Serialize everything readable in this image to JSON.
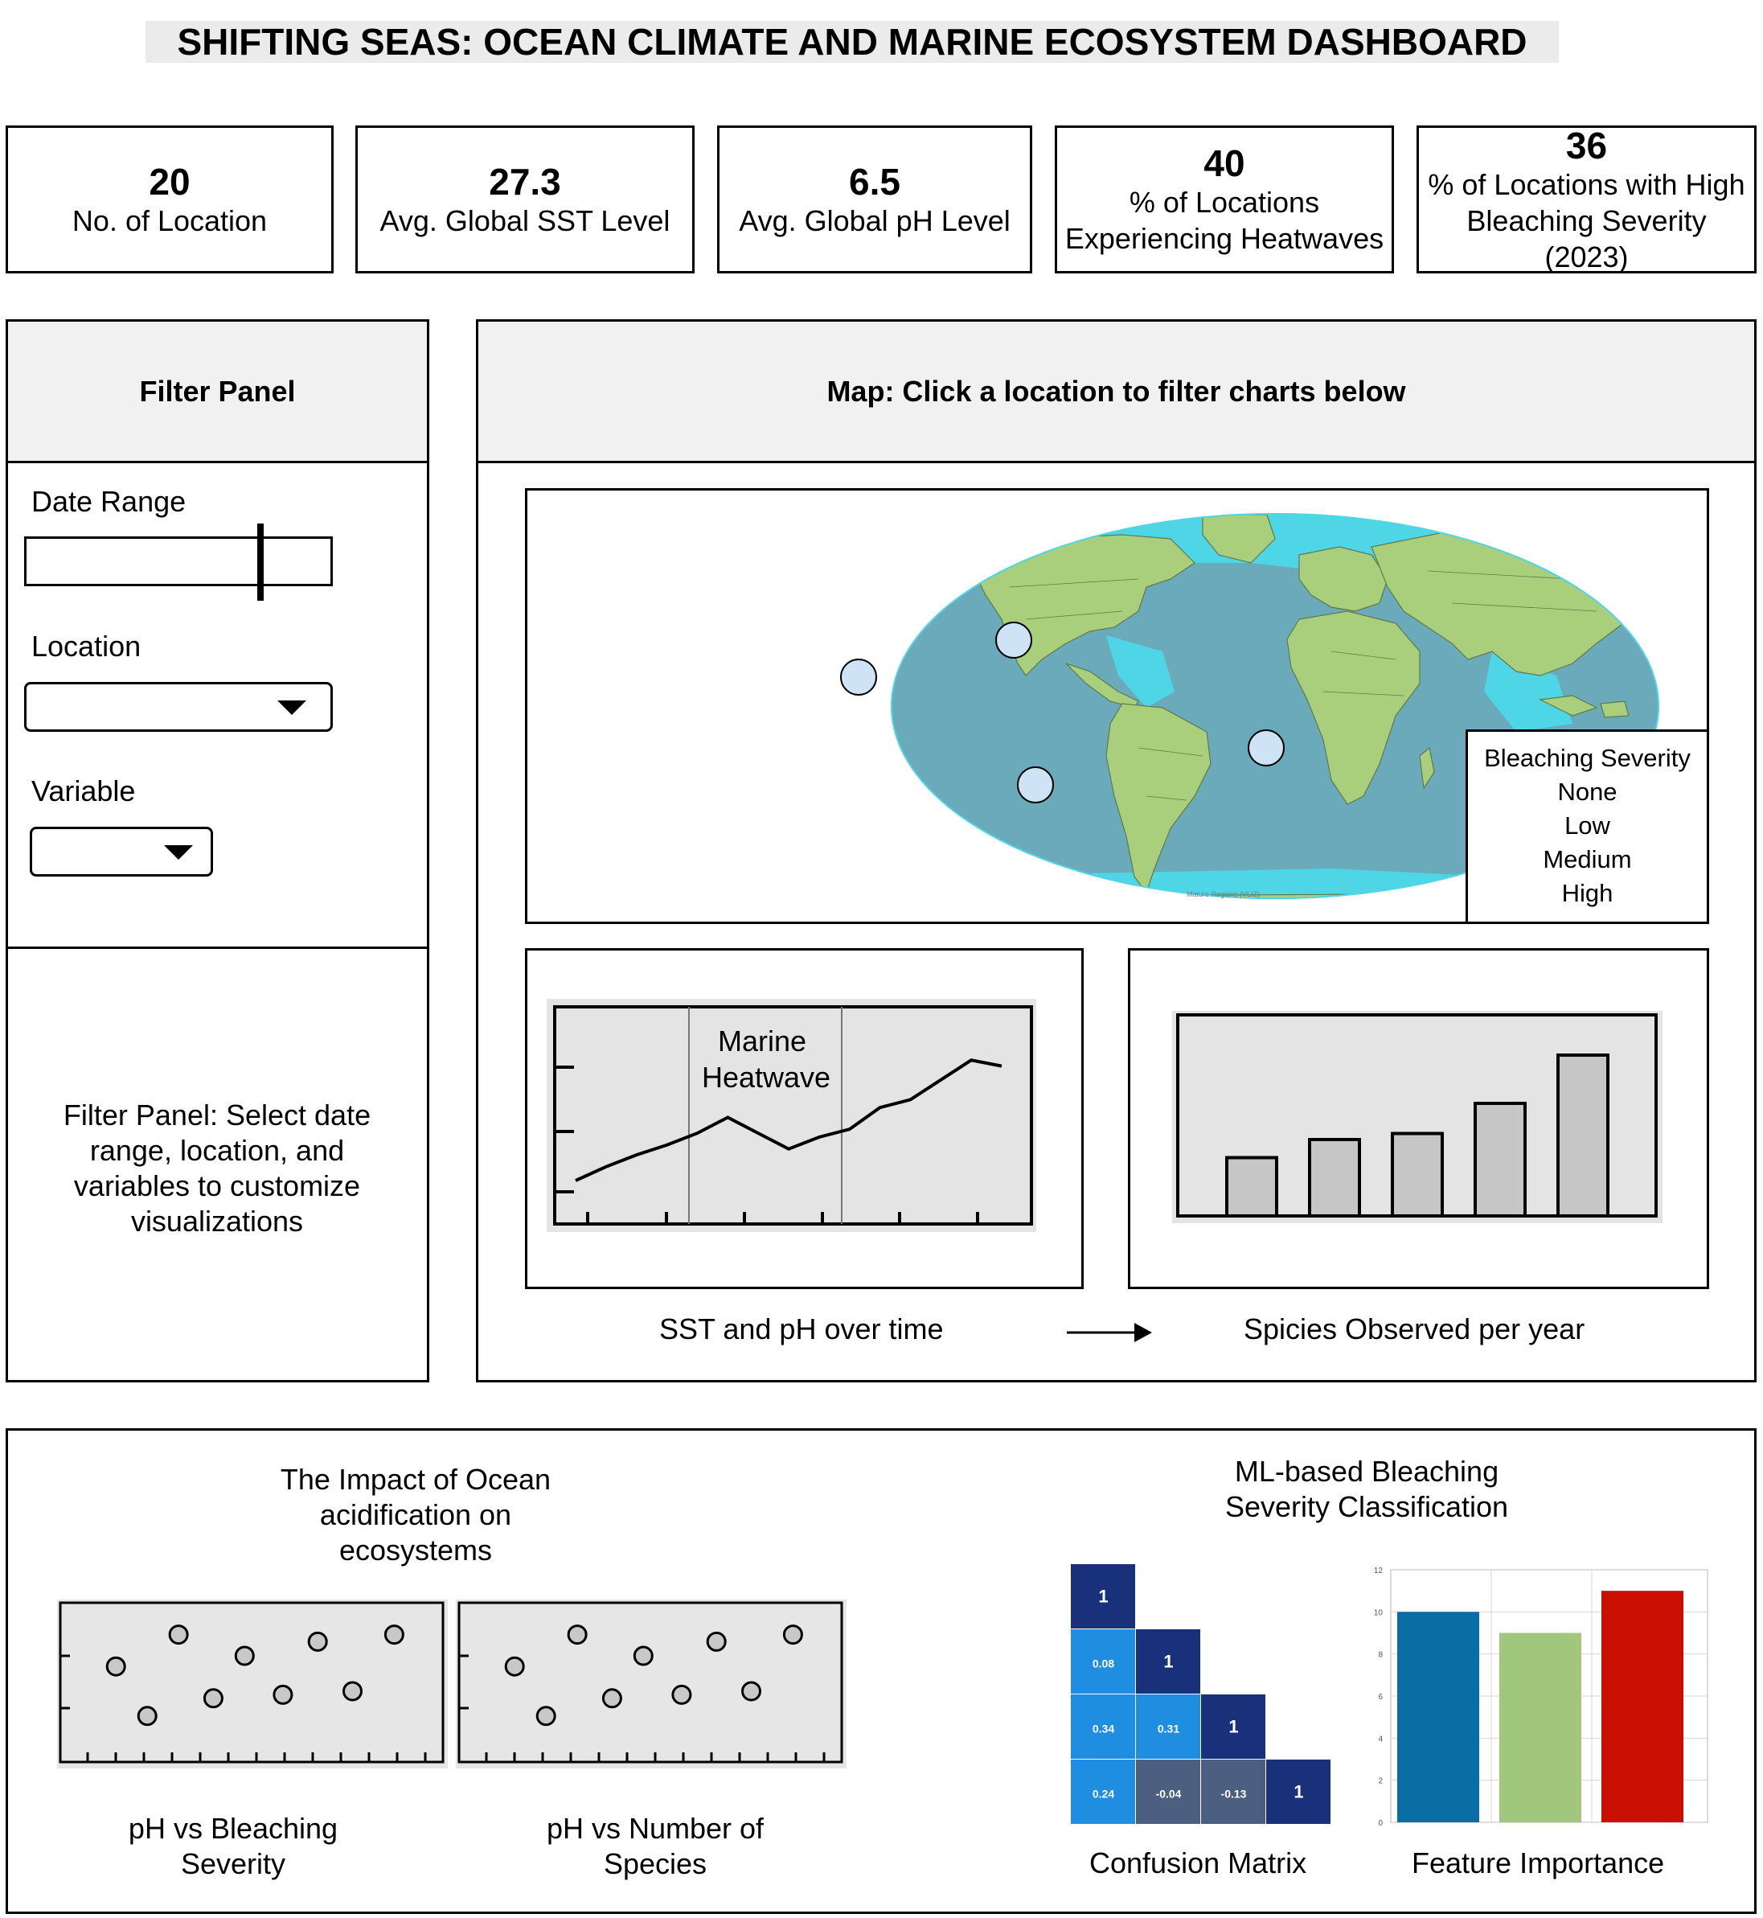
{
  "header": {
    "title": "SHIFTING SEAS: OCEAN CLIMATE AND MARINE ECOSYSTEM DASHBOARD"
  },
  "kpis": [
    {
      "value": "20",
      "label": "No. of Location"
    },
    {
      "value": "27.3",
      "label": "Avg. Global SST Level"
    },
    {
      "value": "6.5",
      "label": "Avg. Global pH Level"
    },
    {
      "value": "40",
      "label": "% of Locations Experiencing Heatwaves"
    },
    {
      "value": "36",
      "label": "% of Locations with High Bleaching Severity (2023)"
    }
  ],
  "filter_panel": {
    "title": "Filter Panel",
    "date_range_label": "Date Range",
    "date_range_position": 0.77,
    "location_label": "Location",
    "variable_label": "Variable",
    "description": "Filter Panel: Select date range, location, and variables to customize visualizations"
  },
  "map_panel": {
    "title": "Map: Click a location to filter charts below",
    "map_credit": "Mature Regions (VLIZ)",
    "legend": {
      "title": "Bleaching Severity",
      "items": [
        "None",
        "Low",
        "Medium",
        "High"
      ]
    },
    "colors": {
      "ocean": "#6aaabb",
      "land": "#a9cf7d",
      "coast": "#4fd6e6",
      "marker": "#cfe3f6"
    }
  },
  "line_chart": {
    "annotation_line1": "Marine",
    "annotation_line2": "Heatwave",
    "caption": "SST and pH over time"
  },
  "bar_chart": {
    "caption": "Spicies Observed per year"
  },
  "impact_section": {
    "title": "The Impact of Ocean acidification on ecosystems",
    "scatter1_caption": "pH vs Bleaching Severity",
    "scatter2_caption": "pH vs Number of Species"
  },
  "ml_section": {
    "title": "ML-based Bleaching Severity Classification",
    "confusion_caption": "Confusion Matrix",
    "feature_caption": "Feature Importance"
  },
  "chart_data": [
    {
      "type": "line",
      "x": [
        1,
        2,
        3,
        4,
        5,
        6,
        7,
        8,
        9,
        10,
        11,
        12,
        13,
        14,
        15
      ],
      "values": [
        2.2,
        2.9,
        3.5,
        4.0,
        4.6,
        5.4,
        4.6,
        3.8,
        4.4,
        4.8,
        5.9,
        6.3,
        7.3,
        8.3,
        8.0
      ],
      "title": "",
      "xlabel": "",
      "ylabel": "",
      "ylim": [
        0,
        11
      ],
      "legend": "none"
    },
    {
      "type": "bar",
      "categories": [
        "",
        "",
        "",
        "",
        ""
      ],
      "values": [
        2.9,
        3.8,
        4.1,
        5.6,
        8.0
      ],
      "title": "",
      "ylim": [
        0,
        10
      ]
    },
    {
      "type": "scatter",
      "x": [
        0.8,
        1.25,
        1.7,
        2.2,
        2.65,
        3.2,
        3.7,
        4.2,
        4.8
      ],
      "y": [
        2.7,
        1.3,
        3.6,
        1.8,
        3.0,
        1.9,
        3.4,
        2.0,
        3.6
      ],
      "ylim": [
        0,
        4.5
      ],
      "xlim": [
        0,
        5.5
      ]
    },
    {
      "type": "scatter",
      "x": [
        0.8,
        1.25,
        1.7,
        2.2,
        2.65,
        3.2,
        3.7,
        4.2,
        4.8
      ],
      "y": [
        2.7,
        1.3,
        3.6,
        1.8,
        3.0,
        1.9,
        3.4,
        2.0,
        3.6
      ],
      "ylim": [
        0,
        4.5
      ],
      "xlim": [
        0,
        5.5
      ]
    },
    {
      "type": "heatmap",
      "cells": [
        [
          "1"
        ],
        [
          "0.08",
          "1"
        ],
        [
          "0.34",
          "0.31",
          "1"
        ],
        [
          "0.24",
          "-0.04",
          "-0.13",
          "1"
        ]
      ],
      "values": [
        [
          1
        ],
        [
          0.08,
          1
        ],
        [
          0.34,
          0.31,
          1
        ],
        [
          0.24,
          -0.04,
          -0.13,
          1
        ]
      ]
    },
    {
      "type": "bar",
      "categories": [
        "",
        "",
        ""
      ],
      "values": [
        10,
        9,
        11
      ],
      "colors": [
        "#0a6ea5",
        "#a0c77c",
        "#c80f02"
      ],
      "ylim": [
        0,
        12
      ],
      "yticks": [
        "0",
        "2",
        "4",
        "6",
        "8",
        "10",
        "12"
      ]
    }
  ]
}
